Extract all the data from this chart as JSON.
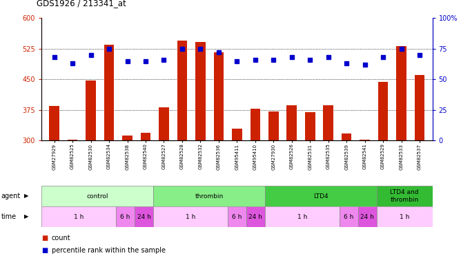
{
  "title": "GDS1926 / 213341_at",
  "samples": [
    "GSM27929",
    "GSM82525",
    "GSM82530",
    "GSM82534",
    "GSM82538",
    "GSM82540",
    "GSM82527",
    "GSM82528",
    "GSM82532",
    "GSM82536",
    "GSM95411",
    "GSM95410",
    "GSM27930",
    "GSM82526",
    "GSM82531",
    "GSM82535",
    "GSM82539",
    "GSM82541",
    "GSM82529",
    "GSM82533",
    "GSM82537"
  ],
  "count_values": [
    385,
    303,
    447,
    535,
    313,
    320,
    381,
    545,
    542,
    517,
    330,
    378,
    372,
    387,
    370,
    387,
    318,
    302,
    443,
    531,
    461
  ],
  "percentile_values": [
    68,
    63,
    70,
    75,
    65,
    65,
    66,
    75,
    75,
    72,
    65,
    66,
    66,
    68,
    66,
    68,
    63,
    62,
    68,
    75,
    70
  ],
  "ylim_left": [
    300,
    600
  ],
  "ylim_right": [
    0,
    100
  ],
  "yticks_left": [
    300,
    375,
    450,
    525,
    600
  ],
  "yticks_right": [
    0,
    25,
    50,
    75,
    100
  ],
  "bar_color": "#cc2200",
  "dot_color": "#0000cc",
  "agent_groups": [
    {
      "label": "control",
      "start": 0,
      "end": 6,
      "color": "#ccffcc"
    },
    {
      "label": "thrombin",
      "start": 6,
      "end": 12,
      "color": "#88ee88"
    },
    {
      "label": "LTD4",
      "start": 12,
      "end": 18,
      "color": "#44cc44"
    },
    {
      "label": "LTD4 and\nthrombin",
      "start": 18,
      "end": 21,
      "color": "#33bb33"
    }
  ],
  "time_groups": [
    {
      "label": "1 h",
      "start": 0,
      "end": 4,
      "color": "#ffccff"
    },
    {
      "label": "6 h",
      "start": 4,
      "end": 5,
      "color": "#ee88ee"
    },
    {
      "label": "24 h",
      "start": 5,
      "end": 6,
      "color": "#dd55dd"
    },
    {
      "label": "1 h",
      "start": 6,
      "end": 10,
      "color": "#ffccff"
    },
    {
      "label": "6 h",
      "start": 10,
      "end": 11,
      "color": "#ee88ee"
    },
    {
      "label": "24 h",
      "start": 11,
      "end": 12,
      "color": "#dd55dd"
    },
    {
      "label": "1 h",
      "start": 12,
      "end": 16,
      "color": "#ffccff"
    },
    {
      "label": "6 h",
      "start": 16,
      "end": 17,
      "color": "#ee88ee"
    },
    {
      "label": "24 h",
      "start": 17,
      "end": 18,
      "color": "#dd55dd"
    },
    {
      "label": "1 h",
      "start": 18,
      "end": 21,
      "color": "#ffccff"
    }
  ]
}
